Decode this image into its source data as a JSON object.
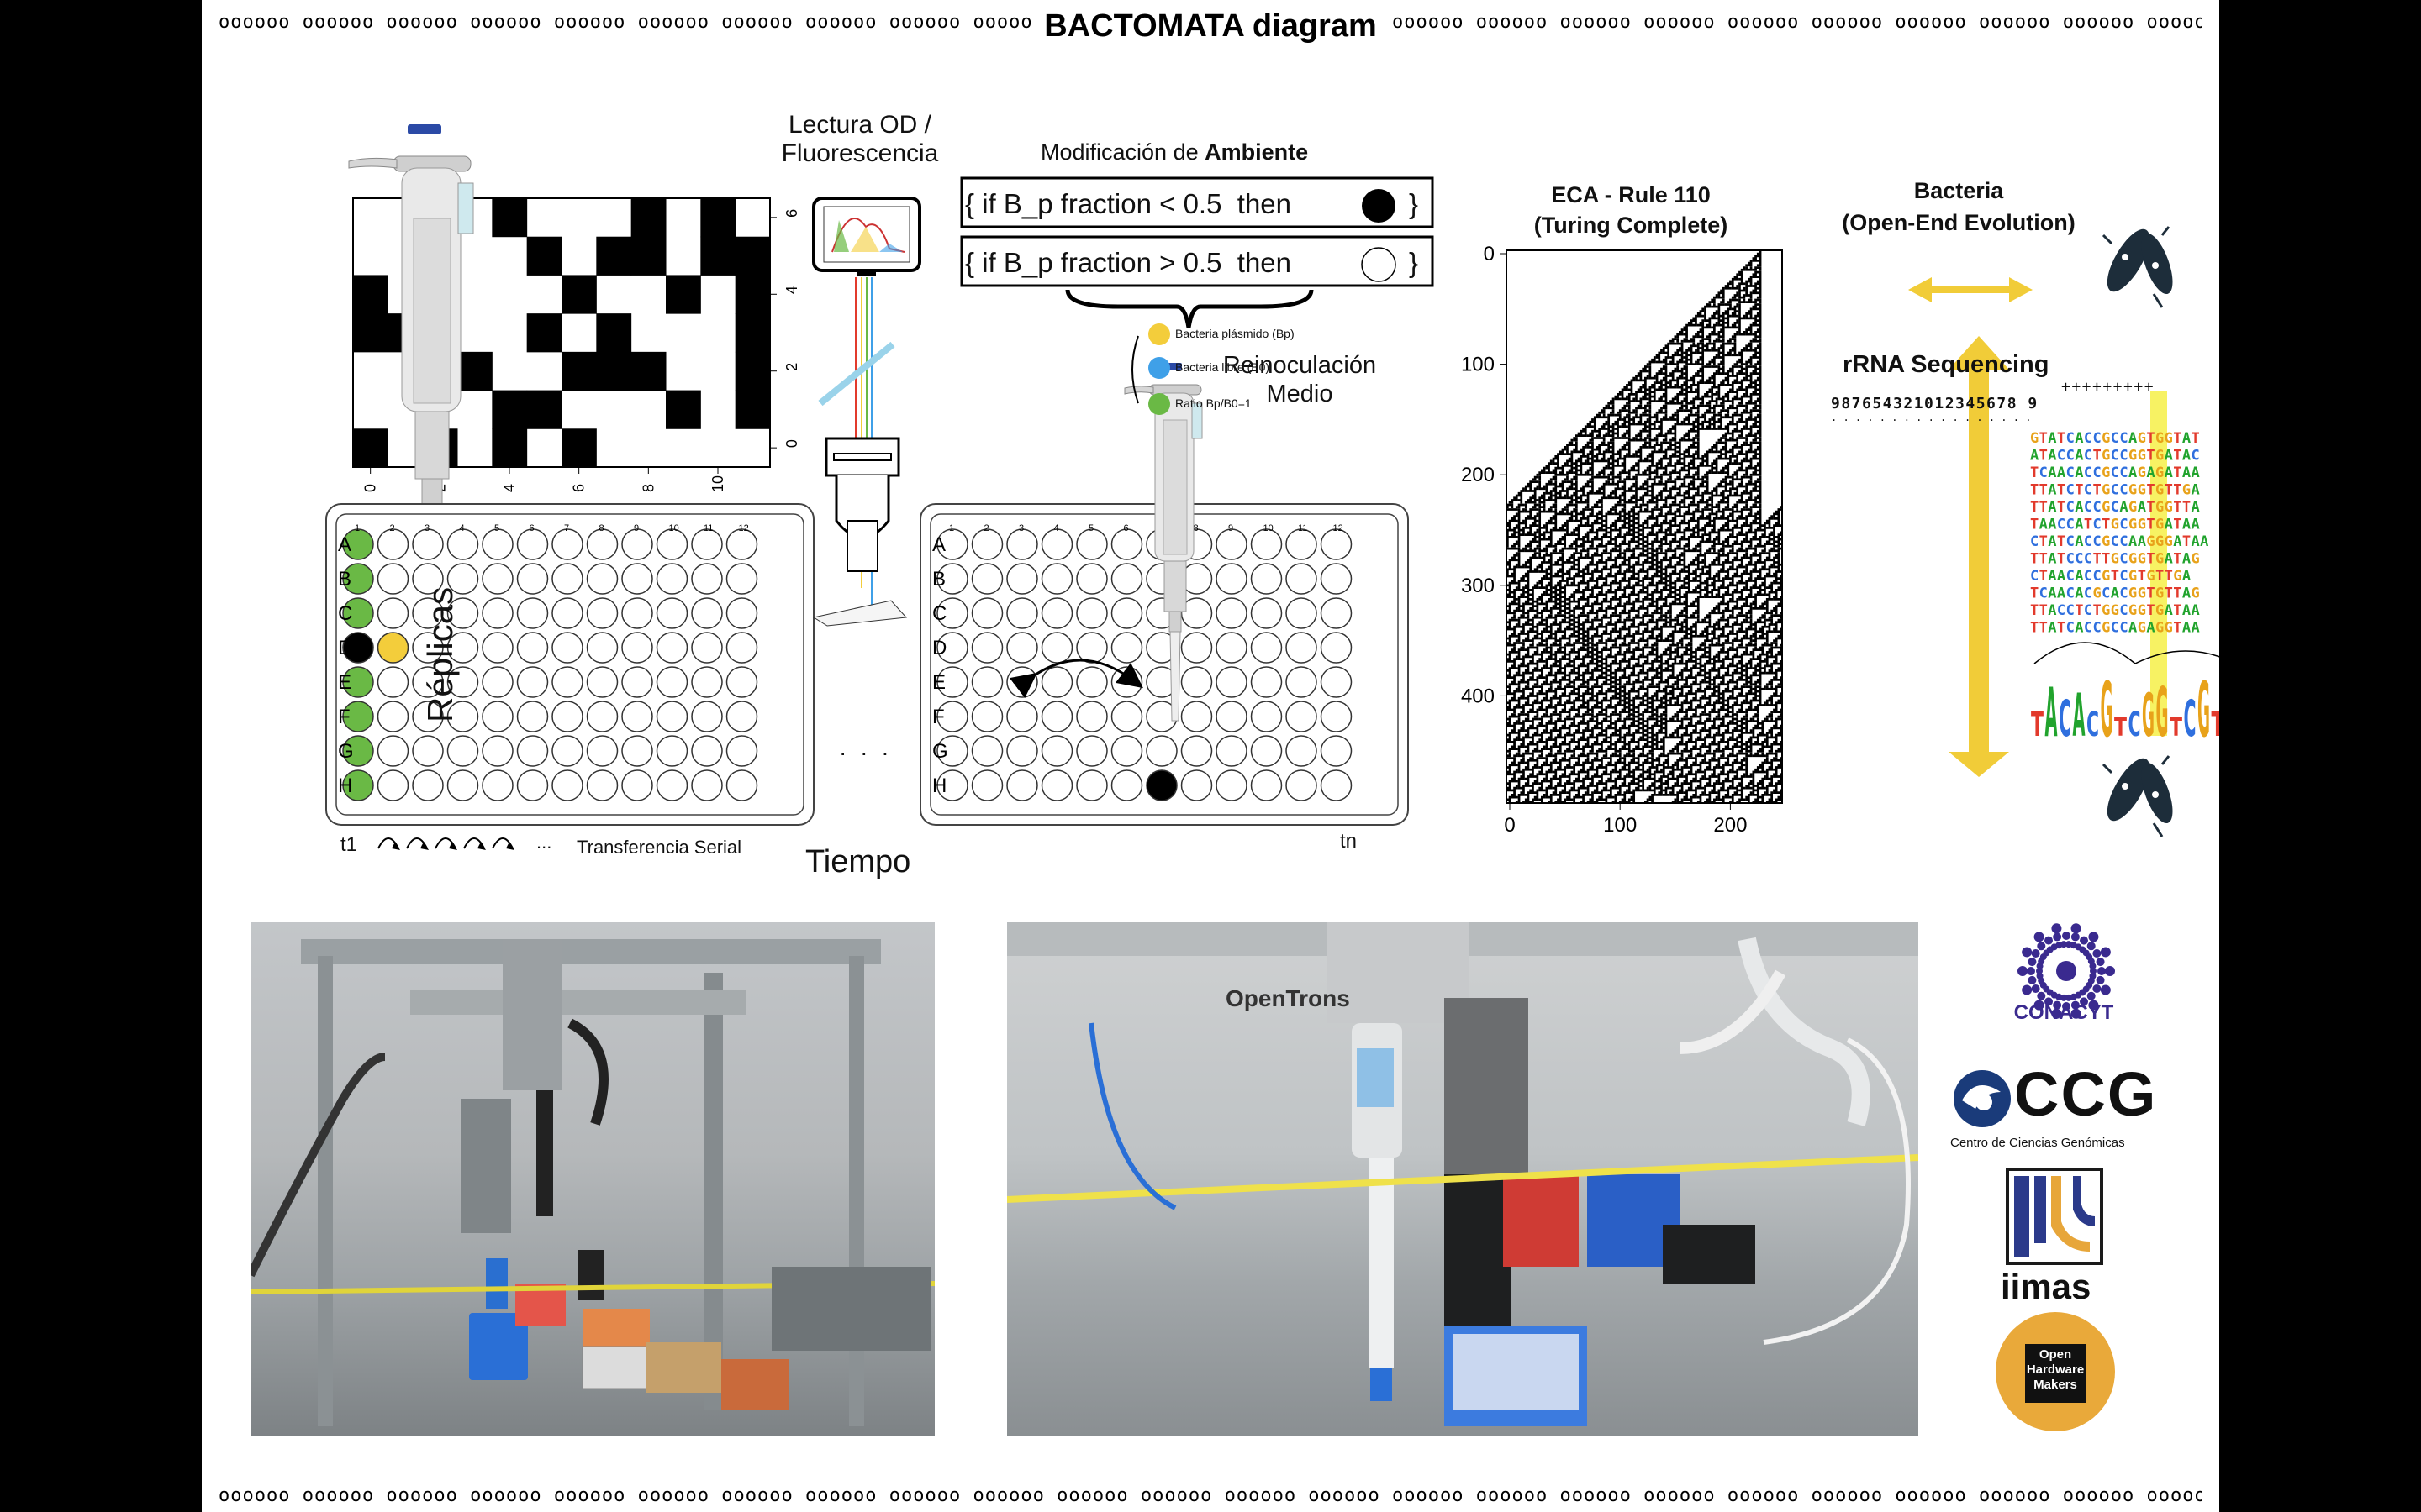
{
  "title": "BACTOMATA diagram",
  "border_pattern": "oooooo oooooo oooooo oooooo oooooo oooooo oooooo oooooo oooooo oooooo oooooo oooooo oooooo oooooo oooooo oooooo oooooo oooooo oooooo oooooo oooooo oooooo oooooo oooooo oooooo oooooo oooooo oooooo oooooo oooooo oooooo oooooo oooooo oooooo oooooo oooooo oooooo oooooo",
  "grid_panel": {
    "x_ticks": [
      "0",
      "2",
      "4",
      "6",
      "8",
      "10"
    ],
    "y_ticks": [
      "0",
      "2",
      "4",
      "6"
    ]
  },
  "readout": {
    "lectura_label": "Lectura OD /\nFluorescencia",
    "modificacion_label": "Modificación de",
    "ambiente_label": "Ambiente",
    "rule1": "{ if B_p fraction < 0.5  then",
    "rule2": "{ if B_p fraction > 0.5  then",
    "rule_close": "}",
    "legend": [
      {
        "label": "Bacteria plásmido (Bp)",
        "color": "#f3cd3b"
      },
      {
        "label": "Bacteria libre (B0)",
        "color": "#3fa0e8"
      },
      {
        "label": "Ratio Bp/B0=1",
        "color": "#6ab945"
      }
    ]
  },
  "plates": {
    "columns": [
      "1",
      "2",
      "3",
      "4",
      "5",
      "6",
      "7",
      "8",
      "9",
      "10",
      "11",
      "12"
    ],
    "rows": [
      "A",
      "B",
      "C",
      "D",
      "E",
      "F",
      "G",
      "H"
    ],
    "replicas_label": "Réplicas",
    "tiempo_label": "Tiempo",
    "t1_label": "t1",
    "tn_label": "tn",
    "transfer_label": "Transferencia Serial",
    "ellipsis": "...",
    "dots": "· · ·",
    "reinoculacion_label": "Reinoculación\nMedio"
  },
  "eca": {
    "title": "ECA - Rule 110",
    "subtitle": "(Turing Complete)",
    "y_ticks": [
      "0",
      "100",
      "200",
      "300",
      "400"
    ],
    "x_ticks": [
      "0",
      "100",
      "200"
    ]
  },
  "bacteria": {
    "title": "Bacteria",
    "subtitle": "(Open-End Evolution)",
    "rrna_title": "rRNA Sequencing",
    "index_top": "+++++++++",
    "index_row": "987654321012345678 9",
    "index_dots": ". . . . . . . . . . . . . . . . .",
    "sequences": [
      "GTATCACCGCCAGTGGTAT",
      "ATACCACTGCCGGTGATAC",
      "TCAACACCGCCAGAGATAA",
      "TTATCTCTGCCGGTGTTGA",
      "TTATCACCGCAGATGGTTA",
      "TAACCATCTGCGGTGATAA",
      "CTATCACCGCCAAGGGATAA",
      "TTATCCCTTGCGGTGATAG",
      "CTAACACCGTCGTGTTGA",
      "TCAACACGCACGGTGTTAG",
      "TTACCTCTGGCGGTGATAA",
      "TTATCACCGCCAGAGGTAA"
    ],
    "base_colors": {
      "A": "#21a32d",
      "C": "#2f6fde",
      "G": "#e8a21a",
      "T": "#e23a2c"
    }
  },
  "photos": {
    "left_caption": "",
    "right_brand": "OpenTrons"
  },
  "logos": {
    "conacyt": "CONACYT",
    "ccg": "CCG",
    "ccg_sub": "Centro de Ciencias Genómicas",
    "iimas": "iimas",
    "oshw_l1": "Open",
    "oshw_l2": "Hardware",
    "oshw_l3": "Makers"
  },
  "colors": {
    "green": "#6ab945",
    "yellow": "#f3cd3b",
    "blue": "#3fa0e8",
    "arrow_yellow": "#f1cc38",
    "conacyt": "#3a2a8f",
    "ccg": "#1a3b7a",
    "oshw": "#e9a93a"
  }
}
